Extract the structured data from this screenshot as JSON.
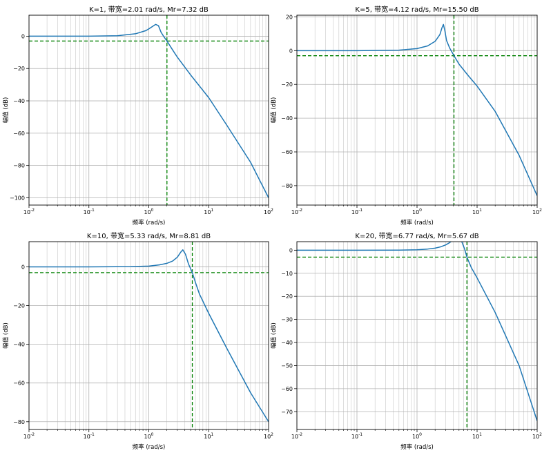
{
  "chart_data": [
    {
      "type": "line",
      "title": "K=1, 带宽=2.01 rad/s, Mr=7.32 dB",
      "xlabel": "频率 (rad/s)",
      "ylabel": "幅值 (dB)",
      "xscale": "log",
      "xlim": [
        0.01,
        100
      ],
      "ylim": [
        -104.5,
        13
      ],
      "yticks": [
        0,
        -20,
        -40,
        -60,
        -80,
        -100
      ],
      "xticks": [
        0.01,
        0.1,
        1,
        10,
        100
      ],
      "xtick_labels": [
        "10^-2",
        "10^-1",
        "10^0",
        "10^1",
        "10^2"
      ],
      "grid": true,
      "bandwidth_line": 2.01,
      "reference_db": -3,
      "series": [
        {
          "color": "#1f77b4",
          "x": [
            0.01,
            0.1,
            0.3,
            0.6,
            0.9,
            1.1,
            1.3,
            1.45,
            1.6,
            1.8,
            2.01,
            2.5,
            3,
            5,
            10,
            20,
            50,
            100
          ],
          "y": [
            0,
            0,
            0.3,
            1.5,
            3.5,
            5.5,
            7.3,
            6.5,
            2.5,
            -0.5,
            -3,
            -8.5,
            -13,
            -24,
            -38,
            -55,
            -78,
            -100
          ]
        }
      ]
    },
    {
      "type": "line",
      "title": "K=5, 带宽=4.12 rad/s, Mr=15.50 dB",
      "xlabel": "频率 (rad/s)",
      "ylabel": "幅值 (dB)",
      "xscale": "log",
      "xlim": [
        0.01,
        100
      ],
      "ylim": [
        -91.5,
        21
      ],
      "yticks": [
        20,
        0,
        -20,
        -40,
        -60,
        -80
      ],
      "xticks": [
        0.01,
        0.1,
        1,
        10,
        100
      ],
      "xtick_labels": [
        "10^-2",
        "10^-1",
        "10^0",
        "10^1",
        "10^2"
      ],
      "grid": true,
      "bandwidth_line": 4.12,
      "reference_db": -3,
      "series": [
        {
          "color": "#1f77b4",
          "x": [
            0.01,
            0.1,
            0.5,
            1,
            1.5,
            2,
            2.4,
            2.6,
            2.75,
            2.9,
            3.1,
            3.5,
            4.12,
            5,
            7,
            10,
            20,
            50,
            100
          ],
          "y": [
            0,
            0,
            0.3,
            1.2,
            2.8,
            5.5,
            9.5,
            13.5,
            15.5,
            12,
            6,
            1.5,
            -3,
            -8,
            -14.5,
            -21,
            -36,
            -62,
            -86
          ]
        }
      ]
    },
    {
      "type": "line",
      "title": "K=10, 带宽=5.33 rad/s, Mr=8.81 dB",
      "xlabel": "频率 (rad/s)",
      "ylabel": "幅值 (dB)",
      "xscale": "log",
      "xlim": [
        0.01,
        100
      ],
      "ylim": [
        -84,
        13
      ],
      "yticks": [
        0,
        -20,
        -40,
        -60,
        -80
      ],
      "xticks": [
        0.01,
        0.1,
        1,
        10,
        100
      ],
      "xtick_labels": [
        "10^-2",
        "10^-1",
        "10^0",
        "10^1",
        "10^2"
      ],
      "grid": true,
      "bandwidth_line": 5.33,
      "reference_db": -3,
      "series": [
        {
          "color": "#1f77b4",
          "x": [
            0.01,
            0.1,
            0.5,
            1,
            1.5,
            2,
            2.5,
            3,
            3.4,
            3.7,
            4.1,
            4.6,
            5.33,
            6,
            7,
            10,
            20,
            50,
            100
          ],
          "y": [
            0,
            0,
            0.1,
            0.4,
            1,
            1.8,
            3,
            5,
            7.5,
            8.8,
            6.5,
            1.5,
            -3,
            -8,
            -14,
            -24,
            -42,
            -65,
            -80
          ]
        }
      ]
    },
    {
      "type": "line",
      "title": "K=20, 带宽=6.77 rad/s, Mr=5.67 dB",
      "xlabel": "频率 (rad/s)",
      "ylabel": "幅值 (dB)",
      "xscale": "log",
      "xlim": [
        0.01,
        100
      ],
      "ylim": [
        -77.7,
        3.7
      ],
      "yticks": [
        0,
        -10,
        -20,
        -30,
        -40,
        -50,
        -60,
        -70
      ],
      "xticks": [
        0.01,
        0.1,
        1,
        10,
        100
      ],
      "xtick_labels": [
        "10^-2",
        "10^-1",
        "10^0",
        "10^1",
        "10^2"
      ],
      "grid": true,
      "bandwidth_line": 6.77,
      "reference_db": -3,
      "series": [
        {
          "color": "#1f77b4",
          "x": [
            0.01,
            0.1,
            0.5,
            1,
            1.5,
            2,
            2.5,
            3,
            3.5,
            4,
            4.5,
            5,
            5.6,
            6.2,
            6.77,
            8,
            10,
            20,
            50,
            100
          ],
          "y": [
            0,
            0,
            0.05,
            0.2,
            0.5,
            0.9,
            1.5,
            2.3,
            3.3,
            4.5,
            5.5,
            5.67,
            3.5,
            0.5,
            -3,
            -7.5,
            -12,
            -27,
            -50,
            -74
          ]
        }
      ]
    }
  ]
}
